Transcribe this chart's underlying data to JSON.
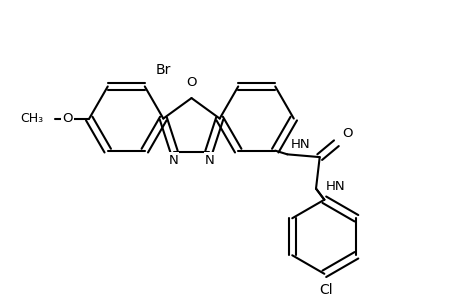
{
  "bg": "#ffffff",
  "lc": "#000000",
  "lw": 1.5,
  "fs": 9.5,
  "r6": 0.4,
  "r5": 0.32,
  "xlim": [
    0.0,
    4.8
  ],
  "ylim": [
    0.3,
    3.5
  ],
  "figsize": [
    4.6,
    3.0
  ],
  "dpi": 100
}
